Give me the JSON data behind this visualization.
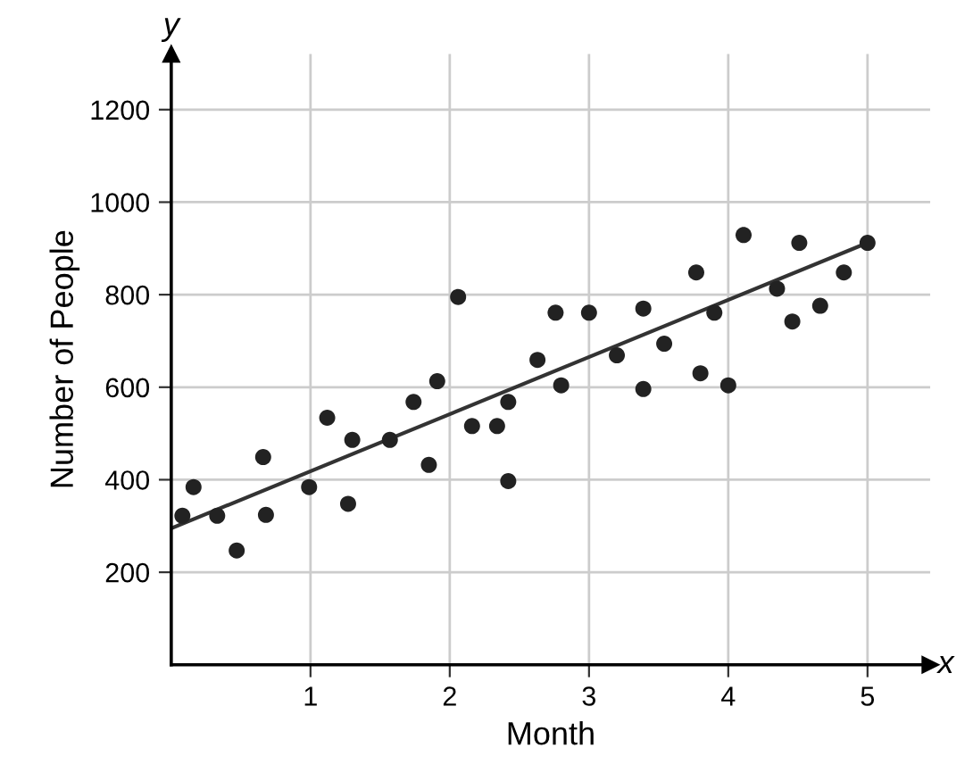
{
  "chart_data": {
    "type": "scatter",
    "xlabel": "Month",
    "ylabel": "Number of People",
    "annotations": [
      "x",
      "y"
    ],
    "xlim": [
      0,
      5.45
    ],
    "ylim": [
      0,
      1320
    ],
    "xticks": [
      1,
      2,
      3,
      4,
      5
    ],
    "yticks": [
      200,
      400,
      600,
      800,
      1000,
      1200
    ],
    "grid": true,
    "legend": false,
    "series": [
      {
        "marker": "circle",
        "color": "#222222",
        "x": [
          0.08,
          0.16,
          0.33,
          0.47,
          0.66,
          0.68,
          0.99,
          1.12,
          1.27,
          1.3,
          1.57,
          1.74,
          1.85,
          1.91,
          2.06,
          2.16,
          2.34,
          2.42,
          2.42,
          2.63,
          2.76,
          2.8,
          3.0,
          3.2,
          3.39,
          3.39,
          3.54,
          3.77,
          3.8,
          3.9,
          4.0,
          4.11,
          4.35,
          4.46,
          4.51,
          4.66,
          4.83,
          5.0
        ],
        "values": [
          322,
          384,
          322,
          247,
          449,
          324,
          384,
          534,
          348,
          486,
          486,
          568,
          432,
          613,
          795,
          516,
          516,
          568,
          397,
          659,
          761,
          604,
          761,
          669,
          770,
          596,
          694,
          848,
          630,
          761,
          604,
          929,
          813,
          742,
          912,
          776,
          848,
          912
        ]
      },
      {
        "type": "line",
        "color": "#333333",
        "x": [
          0,
          5
        ],
        "values": [
          295,
          912
        ]
      }
    ]
  }
}
